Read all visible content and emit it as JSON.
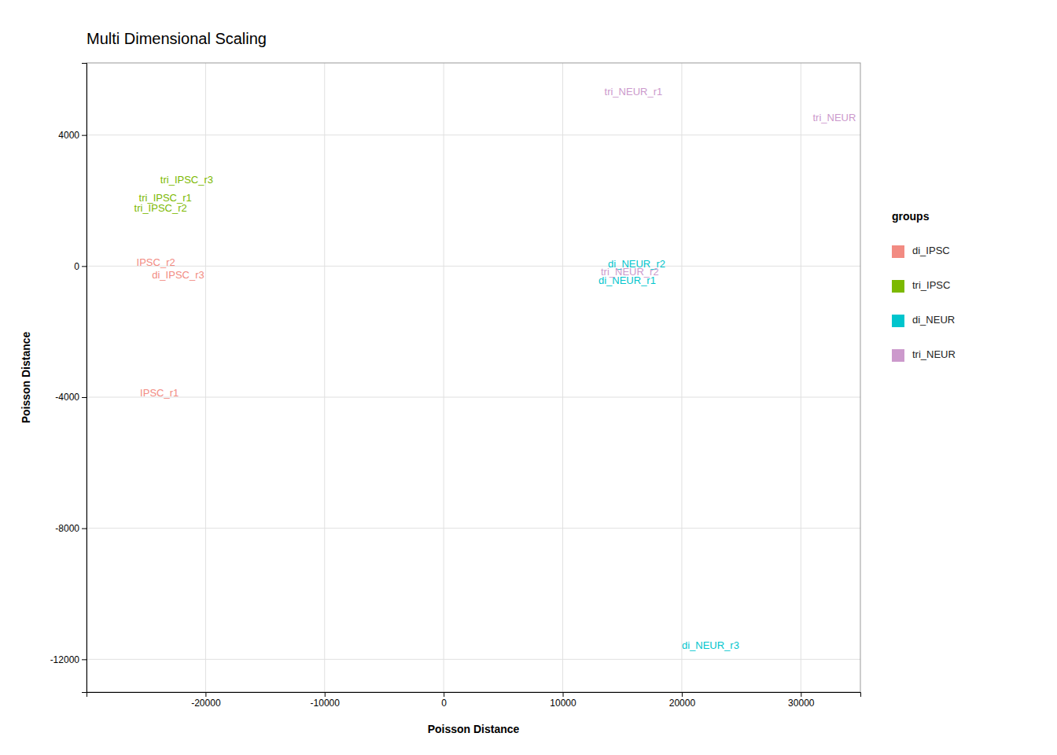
{
  "chart_data": {
    "type": "scatter",
    "marker": "text",
    "title": "Multi Dimensional Scaling",
    "xlabel": "Poisson Distance",
    "ylabel": "Poisson Distance",
    "xlim": [
      -30000,
      35000
    ],
    "ylim": [
      -13000,
      6200
    ],
    "xticks": [
      -20000,
      -10000,
      0,
      10000,
      20000,
      30000
    ],
    "yticks": [
      -12000,
      -8000,
      -4000,
      0,
      4000
    ],
    "grid": true,
    "legend": "right",
    "legend_title": "groups",
    "series": [
      {
        "name": "di_IPSC",
        "color": "#F28B82",
        "x": [
          -25500,
          -25800,
          -24500
        ],
        "y": [
          -3900,
          100,
          -300
        ],
        "labels": [
          "IPSC_r1",
          "IPSC_r2",
          "di_IPSC_r3"
        ]
      },
      {
        "name": "tri_IPSC",
        "color": "#7CB900",
        "x": [
          -25600,
          -26000,
          -23800
        ],
        "y": [
          2050,
          1750,
          2600
        ],
        "labels": [
          "tri_IPSC_r1",
          "tri_IPSC_r2",
          "tri_IPSC_r3"
        ]
      },
      {
        "name": "di_NEUR",
        "color": "#00C5CD",
        "x": [
          13000,
          13800,
          20000
        ],
        "y": [
          -450,
          50,
          -11600
        ],
        "labels": [
          "di_NEUR_r1",
          "di_NEUR_r2",
          "di_NEUR_r3"
        ]
      },
      {
        "name": "tri_NEUR",
        "color": "#CC99CC",
        "x": [
          13500,
          31000,
          13200
        ],
        "y": [
          5300,
          4500,
          -200
        ],
        "labels": [
          "tri_NEUR_r1",
          "tri_NEUR",
          "tri_NEUR_r2"
        ]
      }
    ]
  }
}
